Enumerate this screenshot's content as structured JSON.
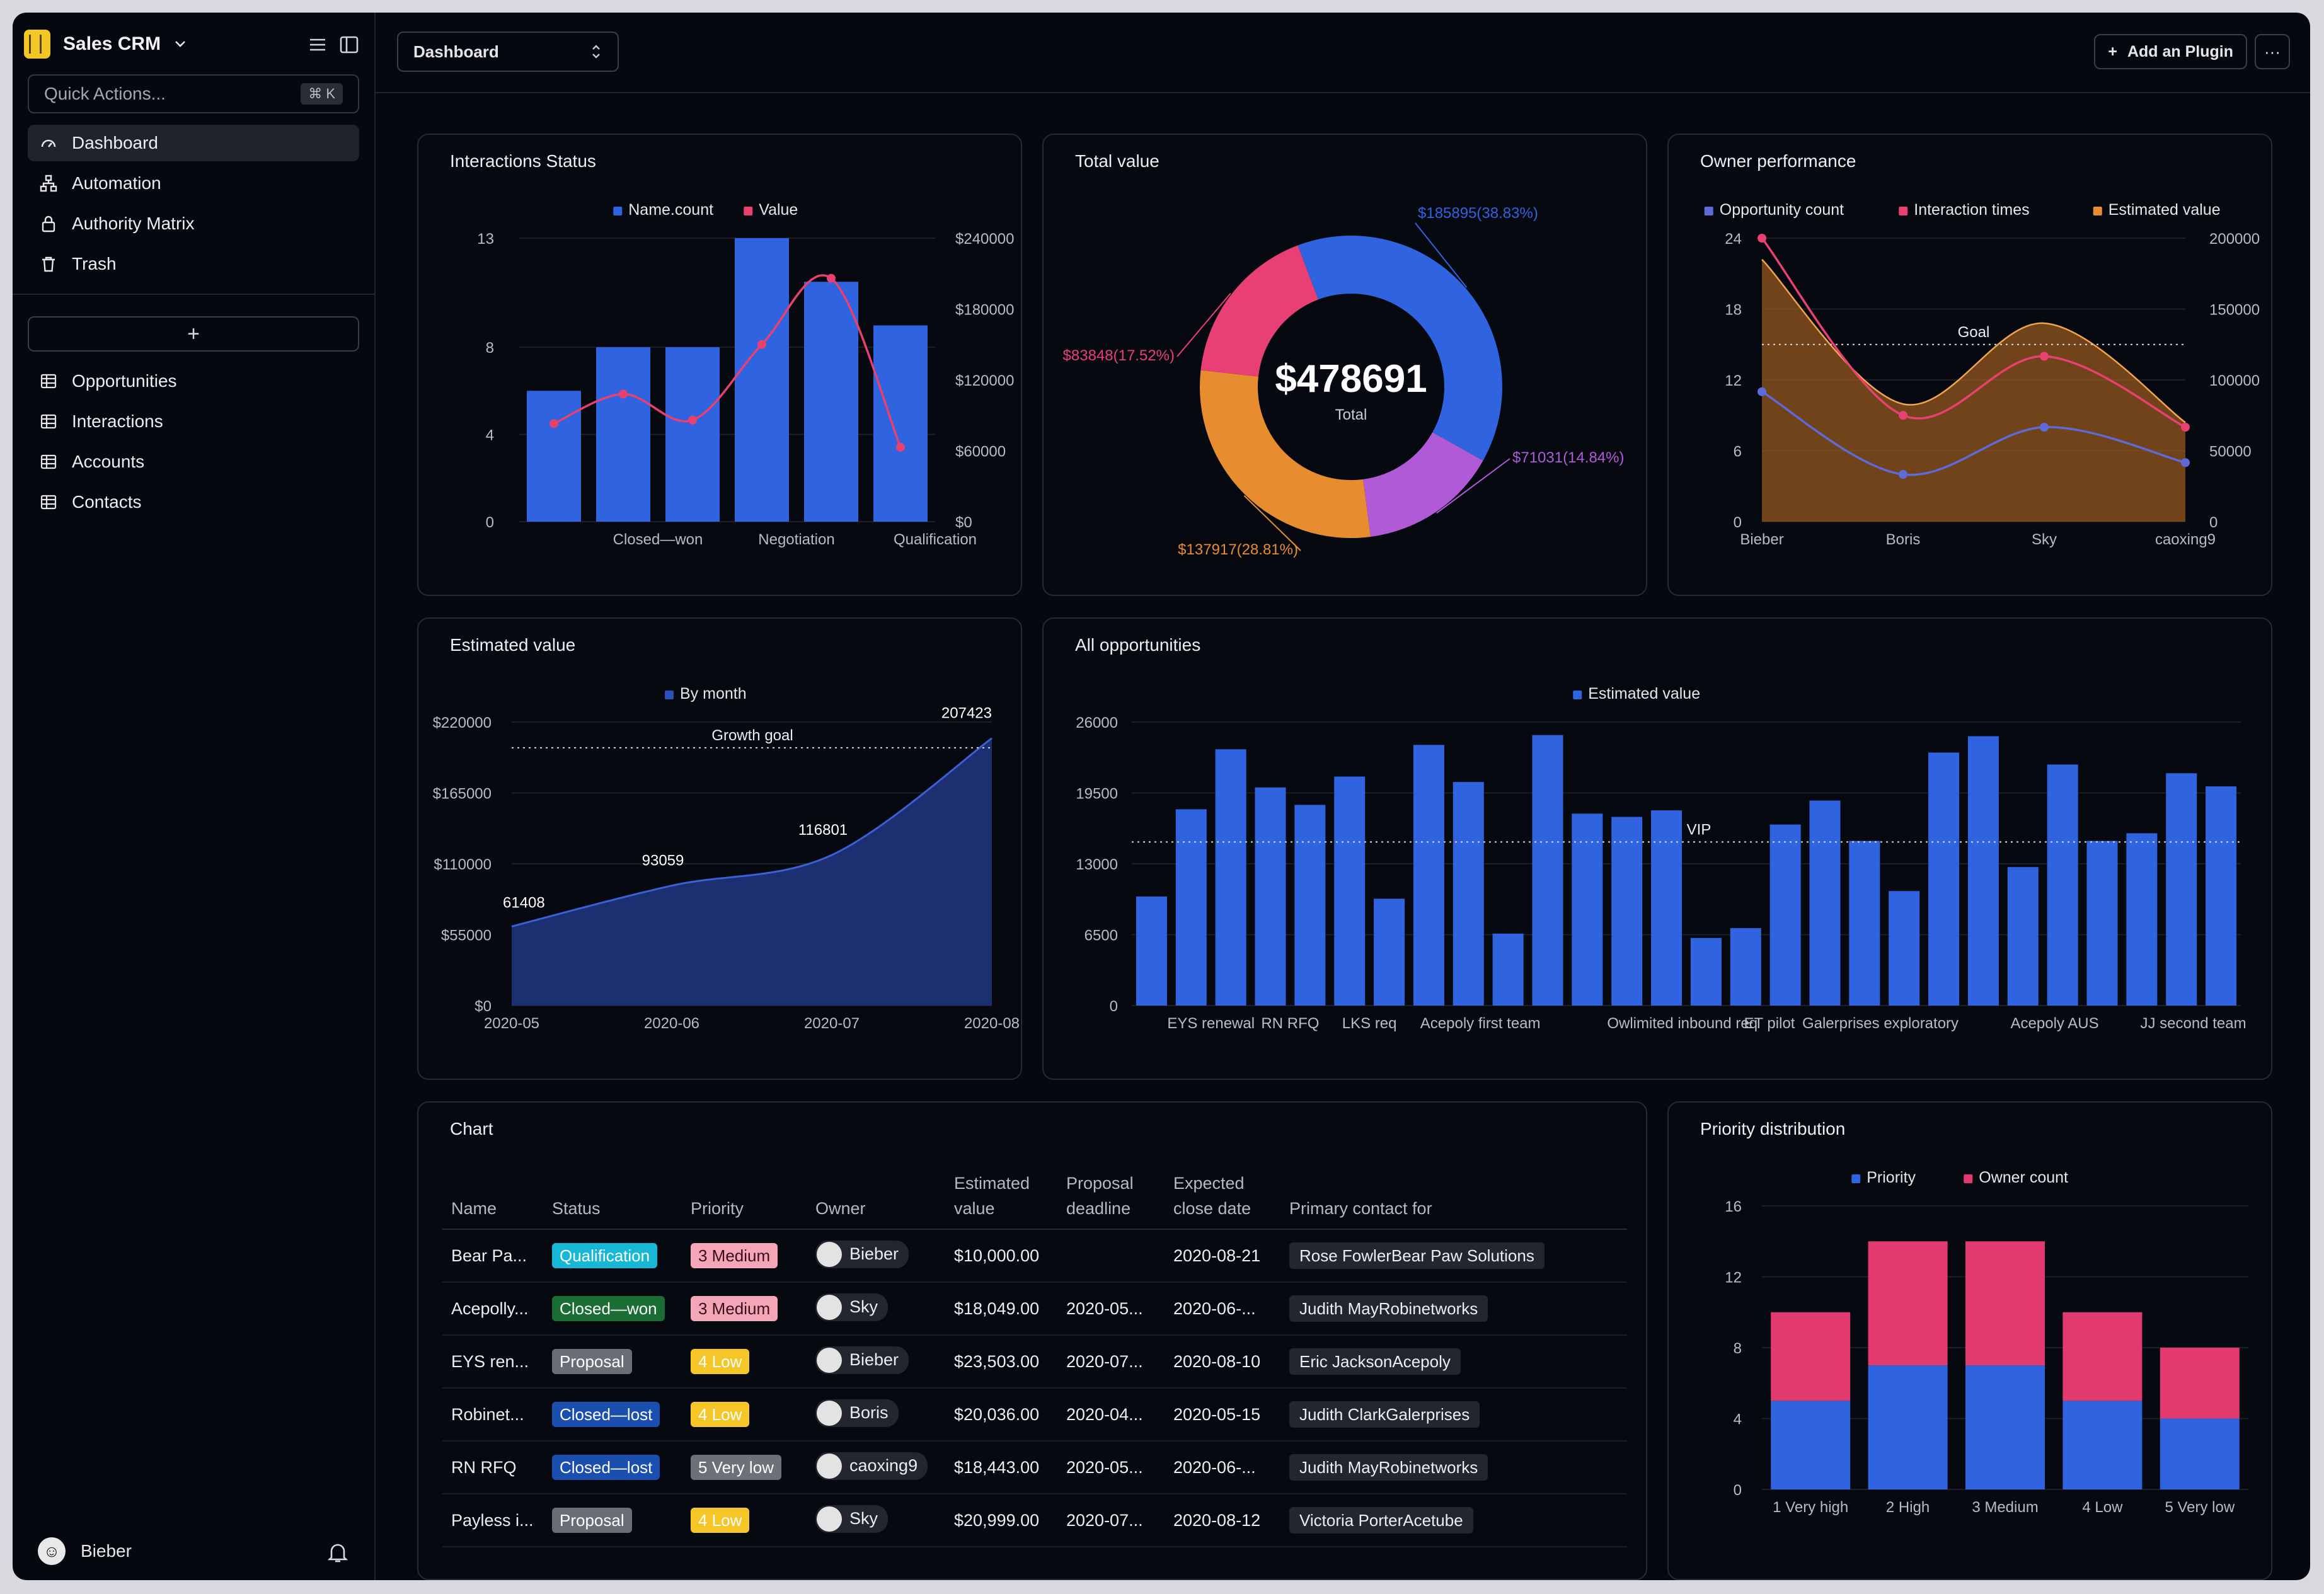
{
  "app": {
    "name": "Sales CRM",
    "quick_actions_placeholder": "Quick Actions...",
    "shortcut": "⌘ K",
    "add_label": "+"
  },
  "nav": [
    {
      "label": "Dashboard",
      "icon": "gauge-icon",
      "active": true
    },
    {
      "label": "Automation",
      "icon": "flow-icon"
    },
    {
      "label": "Authority Matrix",
      "icon": "lock-icon"
    },
    {
      "label": "Trash",
      "icon": "trash-icon"
    }
  ],
  "tables_nav": [
    {
      "label": "Opportunities",
      "icon": "table-icon"
    },
    {
      "label": "Interactions",
      "icon": "table-icon"
    },
    {
      "label": "Accounts",
      "icon": "table-icon"
    },
    {
      "label": "Contacts",
      "icon": "table-icon"
    }
  ],
  "user": {
    "name": "Bieber"
  },
  "topbar": {
    "view_select": "Dashboard",
    "add_plugin": "Add an Plugin",
    "more": "···"
  },
  "cards": {
    "interactions": "Interactions Status",
    "total": "Total value",
    "owner": "Owner performance",
    "estimated": "Estimated value",
    "all_opps": "All opportunities",
    "table": "Chart",
    "priority": "Priority distribution"
  },
  "chart_data": [
    {
      "type": "bar",
      "title": "Interactions Status",
      "categories": [
        "",
        "Closed—won",
        "",
        "Negotiation",
        "",
        "Qualification"
      ],
      "series": [
        {
          "name": "Name.count",
          "type": "bar",
          "axis": "left",
          "color": "#2f63e0",
          "values": [
            6,
            8,
            8,
            13,
            11,
            9
          ]
        },
        {
          "name": "Value",
          "type": "line",
          "axis": "right",
          "color": "#e8416f",
          "values": [
            83000,
            108000,
            86000,
            150000,
            206000,
            63000
          ]
        }
      ],
      "left_ticks": [
        "0",
        "4",
        "8",
        "13"
      ],
      "right_ticks": [
        "$0",
        "$60000",
        "$120000",
        "$180000",
        "$240000"
      ],
      "ylim_left": [
        0,
        13
      ],
      "ylim_right": [
        0,
        240000
      ]
    },
    {
      "type": "pie",
      "title": "Total value",
      "center_value": "$478691",
      "center_label": "Total",
      "slices": [
        {
          "label": "$185895(38.83%)",
          "value": 185895,
          "color": "#2f63e0"
        },
        {
          "label": "$71031(14.84%)",
          "value": 71031,
          "color": "#b05ad8"
        },
        {
          "label": "$137917(28.81%)",
          "value": 137917,
          "color": "#e88c30"
        },
        {
          "label": "$83848(17.52%)",
          "value": 83848,
          "color": "#e83f74"
        }
      ]
    },
    {
      "type": "area",
      "title": "Owner performance",
      "categories": [
        "Bieber",
        "Boris",
        "Sky",
        "caoxing9"
      ],
      "series": [
        {
          "name": "Opportunity count",
          "axis": "left",
          "color": "#5e6ad8",
          "values": [
            11,
            4,
            8,
            5
          ]
        },
        {
          "name": "Interaction times",
          "axis": "left",
          "color": "#e8416f",
          "values": [
            24,
            9,
            14,
            8
          ]
        },
        {
          "name": "Estimated value",
          "axis": "right",
          "color": "#e88c30",
          "values": [
            185000,
            83000,
            140000,
            70000
          ]
        }
      ],
      "goal_label": "Goal",
      "goal_value": 125000,
      "left_ticks": [
        "0",
        "6",
        "12",
        "18",
        "24"
      ],
      "right_ticks": [
        "0",
        "50000",
        "100000",
        "150000",
        "200000"
      ],
      "ylim_left": [
        0,
        24
      ],
      "ylim_right": [
        0,
        200000
      ]
    },
    {
      "type": "area",
      "title": "Estimated value",
      "series": [
        {
          "name": "By month",
          "color": "#2f4fb8",
          "x": [
            "2020-05",
            "2020-06",
            "2020-07",
            "2020-08"
          ],
          "values": [
            61408,
            93059,
            116801,
            207423
          ]
        }
      ],
      "point_labels": [
        "61408",
        "93059",
        "116801",
        "207423"
      ],
      "goal_label": "Growth goal",
      "goal_value": 200000,
      "y_ticks": [
        "$0",
        "$55000",
        "$110000",
        "$165000",
        "$220000"
      ],
      "ylim": [
        0,
        220000
      ]
    },
    {
      "type": "bar",
      "title": "All opportunities",
      "series": [
        {
          "name": "Estimated value",
          "color": "#2f63e0",
          "values": [
            10000,
            18000,
            23500,
            20000,
            18400,
            21000,
            9800,
            23900,
            20500,
            6600,
            24800,
            17600,
            17300,
            17900,
            6200,
            7100,
            16600,
            18800,
            15100,
            10500,
            23200,
            24700,
            12700,
            22100,
            15100,
            15800,
            21300,
            20100
          ]
        }
      ],
      "x_labels": [
        "EYS renewal",
        "RN RFQ",
        "LKS req",
        "Acepoly first team",
        "Owlimited inbound req",
        "ET pilot",
        "Galerprises exploratory",
        "Acepoly AUS",
        "JJ second team"
      ],
      "vip_label": "VIP",
      "vip_value": 15000,
      "y_ticks": [
        "0",
        "6500",
        "13000",
        "19500",
        "26000"
      ],
      "ylim": [
        0,
        26000
      ]
    },
    {
      "type": "bar",
      "title": "Priority distribution",
      "stacked": true,
      "categories": [
        "1 Very high",
        "2 High",
        "3 Medium",
        "4 Low",
        "5 Very low"
      ],
      "series": [
        {
          "name": "Priority",
          "color": "#2f63e0",
          "values": [
            5,
            7,
            7,
            5,
            4
          ]
        },
        {
          "name": "Owner count",
          "color": "#e23a6e",
          "values": [
            5,
            7,
            7,
            5,
            4
          ]
        }
      ],
      "y_ticks": [
        "0",
        "4",
        "8",
        "12",
        "16"
      ],
      "ylim": [
        0,
        16
      ]
    }
  ],
  "table": {
    "headers": [
      "Name",
      "Status",
      "Priority",
      "Owner",
      "Estimated value",
      "Proposal deadline",
      "Expected close date",
      "Primary contact for"
    ],
    "status_colors": {
      "Qualification": "#17b8d6",
      "Closed—won": "#1a6e33",
      "Proposal": "#6a6d75",
      "Closed—lost": "#1a4fb0"
    },
    "priority_colors": {
      "3 Medium": "#f4a6b8",
      "4 Low": "#f6c528",
      "5 Very low": "#6e7079"
    },
    "rows": [
      {
        "name": "Bear Pa...",
        "status": "Qualification",
        "priority": "3 Medium",
        "owner": "Bieber",
        "value": "$10,000.00",
        "deadline": "",
        "close": "2020-08-21",
        "contact": "Rose FowlerBear Paw Solutions"
      },
      {
        "name": "Acepolly...",
        "status": "Closed—won",
        "priority": "3 Medium",
        "owner": "Sky",
        "value": "$18,049.00",
        "deadline": "2020-05...",
        "close": "2020-06-...",
        "contact": "Judith MayRobinetworks"
      },
      {
        "name": "EYS ren...",
        "status": "Proposal",
        "priority": "4 Low",
        "owner": "Bieber",
        "value": "$23,503.00",
        "deadline": "2020-07...",
        "close": "2020-08-10",
        "contact": "Eric JacksonAcepoly"
      },
      {
        "name": "Robinet...",
        "status": "Closed—lost",
        "priority": "4 Low",
        "owner": "Boris",
        "value": "$20,036.00",
        "deadline": "2020-04...",
        "close": "2020-05-15",
        "contact": "Judith ClarkGalerprises"
      },
      {
        "name": "RN RFQ",
        "status": "Closed—lost",
        "priority": "5 Very low",
        "owner": "caoxing9",
        "value": "$18,443.00",
        "deadline": "2020-05...",
        "close": "2020-06-...",
        "contact": "Judith MayRobinetworks"
      },
      {
        "name": "Payless i...",
        "status": "Proposal",
        "priority": "4 Low",
        "owner": "Sky",
        "value": "$20,999.00",
        "deadline": "2020-07...",
        "close": "2020-08-12",
        "contact": "Victoria PorterAcetube"
      }
    ]
  }
}
